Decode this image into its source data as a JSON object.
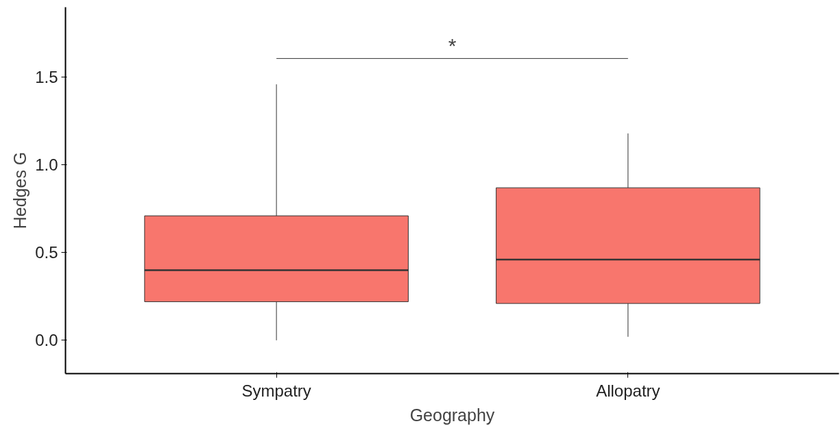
{
  "chart_data": {
    "type": "box",
    "xlabel": "Geography",
    "ylabel": "Hedges G",
    "categories": [
      "Sympatry",
      "Allopatry"
    ],
    "series": [
      {
        "color": "#f8766d",
        "boxes": [
          {
            "low": 0.0,
            "q1": 0.22,
            "median": 0.4,
            "q3": 0.71,
            "high": 1.46
          },
          {
            "low": 0.02,
            "q1": 0.21,
            "median": 0.46,
            "q3": 0.87,
            "high": 1.18
          }
        ]
      }
    ],
    "ylim": [
      -0.19,
      1.9
    ],
    "yticks": [
      {
        "value": 0,
        "label": "0.0"
      },
      0.5,
      {
        "value": 1,
        "label": "1.0"
      },
      1.5
    ],
    "grid": false,
    "annotations": [
      "*"
    ]
  }
}
